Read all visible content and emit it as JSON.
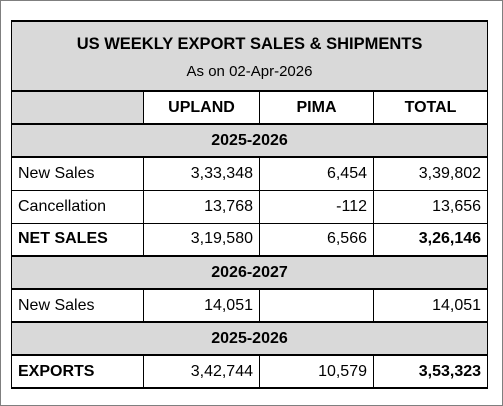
{
  "title": "US WEEKLY EXPORT SALES & SHIPMENTS",
  "subtitle": "As on 02-Apr-2026",
  "columns": [
    "",
    "UPLAND",
    "PIMA",
    "TOTAL"
  ],
  "sections": [
    {
      "year": "2025-2026",
      "rows": [
        {
          "label": "New Sales",
          "upland": "3,33,348",
          "pima": "6,454",
          "total": "3,39,802",
          "bold": false
        },
        {
          "label": "Cancellation",
          "upland": "13,768",
          "pima": "-112",
          "total": "13,656",
          "bold": false
        },
        {
          "label": "NET SALES",
          "upland": "3,19,580",
          "pima": "6,566",
          "total": "3,26,146",
          "bold": true
        }
      ]
    },
    {
      "year": "2026-2027",
      "rows": [
        {
          "label": "New Sales",
          "upland": "14,051",
          "pima": "",
          "total": "14,051",
          "bold": false
        }
      ]
    },
    {
      "year": "2025-2026",
      "rows": [
        {
          "label": "EXPORTS",
          "upland": "3,42,744",
          "pima": "10,579",
          "total": "3,53,323",
          "bold": true
        }
      ]
    }
  ]
}
